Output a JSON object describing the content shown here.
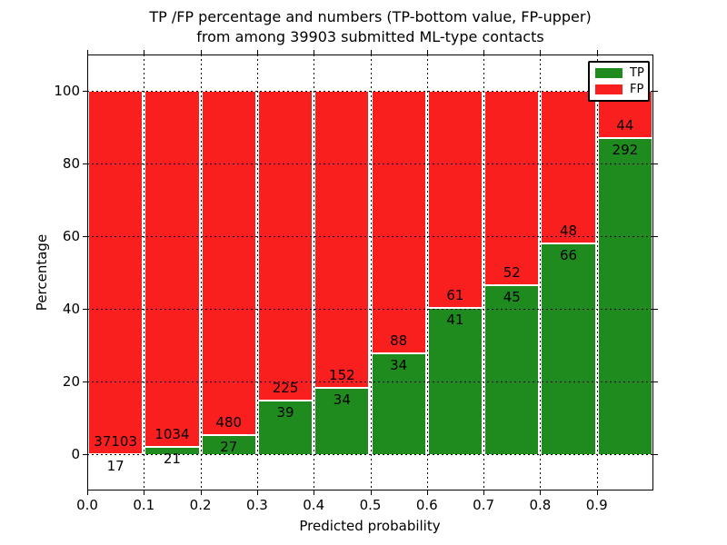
{
  "title_line1": "TP /FP percentage and numbers (TP-bottom value, FP-upper)",
  "title_line2": "from among 39903 submitted ML-type contacts",
  "colors": {
    "tp_green": "#1f8b1f",
    "fp_red": "#fa1f1f",
    "text": "#000000",
    "background": "#ffffff",
    "grid": "#000000"
  },
  "legend": {
    "tp_label": "TP",
    "fp_label": "FP"
  },
  "axes": {
    "xlabel": "Predicted probability",
    "ylabel": "Percentage"
  },
  "chart_data": {
    "type": "bar",
    "stacked": true,
    "normalized_to_percent": true,
    "title": "TP /FP percentage and numbers (TP-bottom value, FP-upper) from among 39903 submitted ML-type contacts",
    "xlabel": "Predicted probability",
    "ylabel": "Percentage",
    "xlim": [
      0.0,
      1.0
    ],
    "ylim": [
      -10,
      110
    ],
    "grid": "dotted, both axes, drawn above bars",
    "legend_position": "upper right",
    "total_contacts": 39903,
    "bin_start": [
      0.0,
      0.1,
      0.2,
      0.3,
      0.4,
      0.5,
      0.6,
      0.7,
      0.8,
      0.9
    ],
    "bin_width": 0.1,
    "xtick_labels": [
      "0.0",
      "0.1",
      "0.2",
      "0.3",
      "0.4",
      "0.5",
      "0.6",
      "0.7",
      "0.8",
      "0.9"
    ],
    "ytick_values": [
      0,
      20,
      40,
      60,
      80,
      100
    ],
    "ytick_labels": [
      "0",
      "20",
      "40",
      "60",
      "80",
      "100"
    ],
    "series": [
      {
        "name": "TP",
        "color": "#1f8b1f",
        "values": [
          17,
          21,
          27,
          39,
          34,
          34,
          41,
          45,
          66,
          292
        ]
      },
      {
        "name": "FP",
        "color": "#fa1f1f",
        "values": [
          37103,
          1034,
          480,
          225,
          152,
          88,
          61,
          52,
          48,
          44
        ]
      }
    ],
    "tp_percent_heights": [
      0.05,
      1.99,
      5.33,
      14.77,
      18.28,
      27.87,
      40.2,
      46.39,
      57.89,
      86.9
    ]
  }
}
